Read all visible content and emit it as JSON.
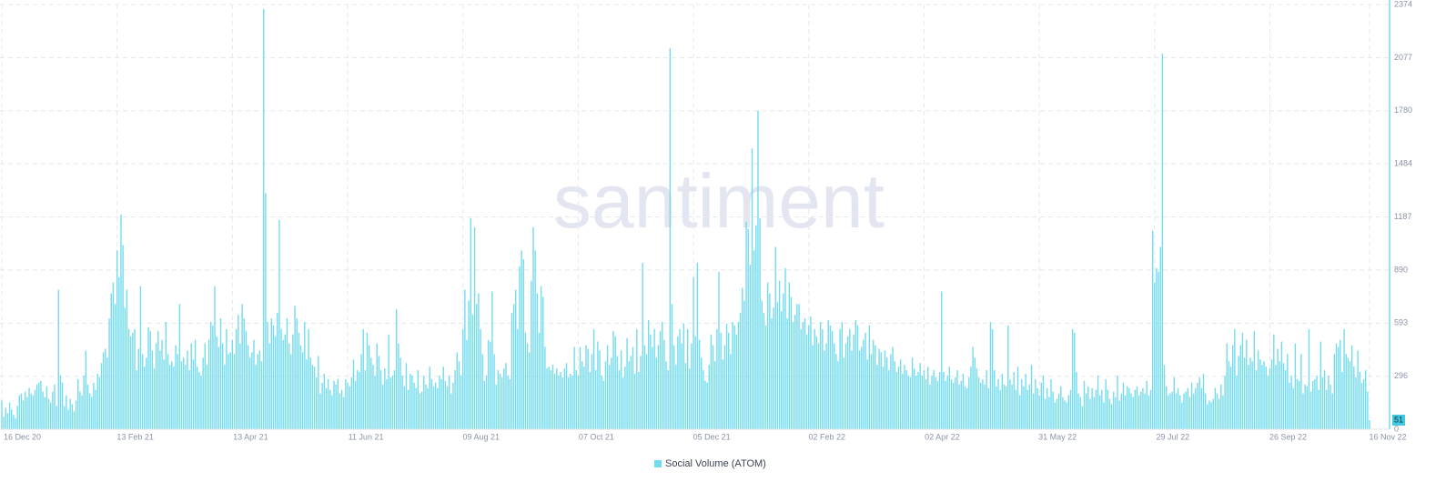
{
  "chart_data": {
    "type": "bar",
    "watermark": "santiment",
    "legend": "Social Volume (ATOM)",
    "color": "#73dbee",
    "grid": true,
    "ylim": [
      0,
      2374
    ],
    "yticks": [
      0,
      296,
      593,
      890,
      1187,
      1484,
      1780,
      2077,
      2374
    ],
    "categories": [
      "16 Dec 20",
      null,
      null,
      null,
      null,
      null,
      null,
      null,
      null,
      null,
      null,
      null,
      null,
      null,
      null,
      null,
      null,
      null,
      null,
      null,
      null,
      null,
      null,
      null,
      null,
      null,
      null,
      null,
      null,
      null,
      null,
      null,
      null,
      null,
      null,
      null,
      null,
      null,
      null,
      null,
      null,
      null,
      null,
      null,
      null,
      null,
      null,
      null,
      null,
      null,
      null,
      null,
      null,
      null,
      null,
      null,
      null,
      null,
      null,
      "13 Feb 21",
      null,
      null,
      null,
      null,
      null,
      null,
      null,
      null,
      null,
      null,
      null,
      null,
      null,
      null,
      null,
      null,
      null,
      null,
      null,
      null,
      null,
      null,
      null,
      null,
      null,
      null,
      null,
      null,
      null,
      null,
      null,
      null,
      null,
      null,
      null,
      null,
      null,
      null,
      null,
      null,
      null,
      null,
      null,
      null,
      null,
      null,
      null,
      null,
      null,
      null,
      null,
      null,
      null,
      null,
      null,
      null,
      null,
      null,
      "13 Apr 21",
      null,
      null,
      null,
      null,
      null,
      null,
      null,
      null,
      null,
      null,
      null,
      null,
      null,
      null,
      null,
      null,
      null,
      null,
      null,
      null,
      null,
      null,
      null,
      null,
      null,
      null,
      null,
      null,
      null,
      null,
      null,
      null,
      null,
      null,
      null,
      null,
      null,
      null,
      null,
      null,
      null,
      null,
      null,
      null,
      null,
      null,
      null,
      null,
      null,
      null,
      null,
      null,
      null,
      null,
      null,
      null,
      null,
      null,
      "11 Jun 21",
      null,
      null,
      null,
      null,
      null,
      null,
      null,
      null,
      null,
      null,
      null,
      null,
      null,
      null,
      null,
      null,
      null,
      null,
      null,
      null,
      null,
      null,
      null,
      null,
      null,
      null,
      null,
      null,
      null,
      null,
      null,
      null,
      null,
      null,
      null,
      null,
      null,
      null,
      null,
      null,
      null,
      null,
      null,
      null,
      null,
      null,
      null,
      null,
      null,
      null,
      null,
      null,
      null,
      null,
      null,
      null,
      null,
      null,
      "09 Aug 21",
      null,
      null,
      null,
      null,
      null,
      null,
      null,
      null,
      null,
      null,
      null,
      null,
      null,
      null,
      null,
      null,
      null,
      null,
      null,
      null,
      null,
      null,
      null,
      null,
      null,
      null,
      null,
      null,
      null,
      null,
      null,
      null,
      null,
      null,
      null,
      null,
      null,
      null,
      null,
      null,
      null,
      null,
      null,
      null,
      null,
      null,
      null,
      null,
      null,
      null,
      null,
      null,
      null,
      null,
      null,
      null,
      null,
      null,
      "07 Oct 21",
      null,
      null,
      null,
      null,
      null,
      null,
      null,
      null,
      null,
      null,
      null,
      null,
      null,
      null,
      null,
      null,
      null,
      null,
      null,
      null,
      null,
      null,
      null,
      null,
      null,
      null,
      null,
      null,
      null,
      null,
      null,
      null,
      null,
      null,
      null,
      null,
      null,
      null,
      null,
      null,
      null,
      null,
      null,
      null,
      null,
      null,
      null,
      null,
      null,
      null,
      null,
      null,
      null,
      null,
      null,
      null,
      null,
      null,
      "05 Dec 21",
      null,
      null,
      null,
      null,
      null,
      null,
      null,
      null,
      null,
      null,
      null,
      null,
      null,
      null,
      null,
      null,
      null,
      null,
      null,
      null,
      null,
      null,
      null,
      null,
      null,
      null,
      null,
      null,
      null,
      null,
      null,
      null,
      null,
      null,
      null,
      null,
      null,
      null,
      null,
      null,
      null,
      null,
      null,
      null,
      null,
      null,
      null,
      null,
      null,
      null,
      null,
      null,
      null,
      null,
      null,
      null,
      null,
      null,
      "02 Feb 22",
      null,
      null,
      null,
      null,
      null,
      null,
      null,
      null,
      null,
      null,
      null,
      null,
      null,
      null,
      null,
      null,
      null,
      null,
      null,
      null,
      null,
      null,
      null,
      null,
      null,
      null,
      null,
      null,
      null,
      null,
      null,
      null,
      null,
      null,
      null,
      null,
      null,
      null,
      null,
      null,
      null,
      null,
      null,
      null,
      null,
      null,
      null,
      null,
      null,
      null,
      null,
      null,
      null,
      null,
      null,
      null,
      null,
      null,
      "02 Apr 22",
      null,
      null,
      null,
      null,
      null,
      null,
      null,
      null,
      null,
      null,
      null,
      null,
      null,
      null,
      null,
      null,
      null,
      null,
      null,
      null,
      null,
      null,
      null,
      null,
      null,
      null,
      null,
      null,
      null,
      null,
      null,
      null,
      null,
      null,
      null,
      null,
      null,
      null,
      null,
      null,
      null,
      null,
      null,
      null,
      null,
      null,
      null,
      null,
      null,
      null,
      null,
      null,
      null,
      null,
      null,
      null,
      null,
      null,
      "31 May 22",
      null,
      null,
      null,
      null,
      null,
      null,
      null,
      null,
      null,
      null,
      null,
      null,
      null,
      null,
      null,
      null,
      null,
      null,
      null,
      null,
      null,
      null,
      null,
      null,
      null,
      null,
      null,
      null,
      null,
      null,
      null,
      null,
      null,
      null,
      null,
      null,
      null,
      null,
      null,
      null,
      null,
      null,
      null,
      null,
      null,
      null,
      null,
      null,
      null,
      null,
      null,
      null,
      null,
      null,
      null,
      null,
      null,
      null,
      "29 Jul 22",
      null,
      null,
      null,
      null,
      null,
      null,
      null,
      null,
      null,
      null,
      null,
      null,
      null,
      null,
      null,
      null,
      null,
      null,
      null,
      null,
      null,
      null,
      null,
      null,
      null,
      null,
      null,
      null,
      null,
      null,
      null,
      null,
      null,
      null,
      null,
      null,
      null,
      null,
      null,
      null,
      null,
      null,
      null,
      null,
      null,
      null,
      null,
      null,
      null,
      null,
      null,
      null,
      null,
      null,
      null,
      null,
      null,
      null,
      "26 Sep 22",
      null,
      null,
      null,
      null,
      null,
      null,
      null,
      null,
      null,
      null,
      null,
      null,
      null,
      null,
      null,
      null,
      null,
      null,
      null,
      null,
      null,
      null,
      null,
      null,
      null,
      null,
      null,
      null,
      null,
      null,
      null,
      null,
      null,
      null,
      null,
      null,
      null,
      null,
      null,
      null,
      null,
      null,
      null,
      null,
      null,
      null,
      null,
      null,
      null,
      null,
      "16 Nov 22"
    ],
    "values": [
      160,
      70,
      120,
      90,
      150,
      110,
      80,
      60,
      130,
      190,
      200,
      160,
      210,
      180,
      230,
      200,
      190,
      220,
      250,
      260,
      270,
      210,
      180,
      240,
      170,
      150,
      210,
      250,
      130,
      780,
      300,
      260,
      130,
      190,
      110,
      170,
      140,
      100,
      160,
      280,
      210,
      190,
      300,
      440,
      250,
      200,
      180,
      260,
      220,
      310,
      290,
      370,
      430,
      450,
      400,
      620,
      760,
      820,
      700,
      1000,
      850,
      1200,
      1030,
      680,
      780,
      560,
      520,
      540,
      560,
      330,
      450,
      800,
      420,
      350,
      400,
      570,
      550,
      440,
      340,
      480,
      550,
      440,
      500,
      390,
      600,
      420,
      360,
      380,
      350,
      470,
      420,
      700,
      380,
      400,
      360,
      440,
      330,
      480,
      390,
      500,
      350,
      320,
      300,
      400,
      480,
      360,
      500,
      600,
      580,
      800,
      520,
      460,
      620,
      480,
      360,
      560,
      420,
      430,
      500,
      420,
      560,
      640,
      480,
      700,
      620,
      550,
      470,
      400,
      430,
      500,
      360,
      420,
      440,
      380,
      2350,
      1320,
      600,
      480,
      620,
      580,
      520,
      650,
      1170,
      560,
      500,
      530,
      620,
      480,
      420,
      530,
      690,
      620,
      540,
      470,
      430,
      600,
      390,
      560,
      400,
      360,
      350,
      290,
      410,
      200,
      260,
      310,
      230,
      280,
      220,
      190,
      270,
      250,
      280,
      200,
      220,
      180,
      280,
      260,
      240,
      290,
      390,
      270,
      330,
      320,
      420,
      560,
      330,
      540,
      470,
      400,
      360,
      300,
      480,
      410,
      330,
      250,
      340,
      280,
      530,
      290,
      300,
      330,
      670,
      480,
      400,
      300,
      240,
      370,
      220,
      310,
      300,
      260,
      230,
      330,
      200,
      210,
      300,
      250,
      230,
      350,
      280,
      240,
      260,
      230,
      300,
      280,
      350,
      270,
      240,
      300,
      200,
      260,
      330,
      430,
      380,
      300,
      560,
      780,
      500,
      720,
      1180,
      640,
      1130,
      700,
      760,
      560,
      420,
      270,
      300,
      500,
      490,
      770,
      420,
      250,
      330,
      310,
      290,
      340,
      370,
      300,
      280,
      650,
      700,
      780,
      560,
      910,
      1000,
      950,
      540,
      480,
      430,
      830,
      1130,
      1000,
      760,
      540,
      800,
      740,
      460,
      340,
      350,
      330,
      360,
      310,
      340,
      300,
      320,
      290,
      340,
      370,
      290,
      310,
      300,
      460,
      330,
      300,
      460,
      380,
      350,
      470,
      450,
      320,
      420,
      560,
      330,
      490,
      440,
      300,
      270,
      380,
      470,
      360,
      400,
      550,
      520,
      410,
      330,
      440,
      290,
      350,
      510,
      380,
      410,
      460,
      310,
      560,
      320,
      410,
      930,
      470,
      420,
      610,
      530,
      460,
      560,
      400,
      470,
      550,
      600,
      500,
      380,
      330,
      2130,
      700,
      470,
      360,
      520,
      560,
      480,
      590,
      370,
      560,
      340,
      480,
      850,
      520,
      930,
      500,
      400,
      330,
      270,
      260,
      360,
      530,
      470,
      380,
      560,
      880,
      540,
      390,
      470,
      590,
      540,
      420,
      600,
      580,
      530,
      600,
      650,
      790,
      720,
      1160,
      1120,
      920,
      1570,
      1000,
      1140,
      1780,
      1180,
      720,
      650,
      580,
      820,
      760,
      620,
      680,
      1020,
      710,
      830,
      660,
      760,
      900,
      620,
      820,
      740,
      600,
      640,
      700,
      700,
      560,
      600,
      620,
      530,
      580,
      630,
      470,
      560,
      520,
      480,
      600,
      560,
      440,
      480,
      610,
      580,
      550,
      480,
      420,
      380,
      560,
      600,
      400,
      480,
      520,
      560,
      440,
      530,
      610,
      580,
      440,
      460,
      500,
      540,
      390,
      580,
      420,
      500,
      470,
      360,
      450,
      430,
      350,
      440,
      400,
      330,
      420,
      460,
      380,
      320,
      350,
      390,
      310,
      360,
      330,
      300,
      290,
      400,
      340,
      300,
      320,
      370,
      300,
      330,
      280,
      350,
      250,
      300,
      330,
      290,
      270,
      320,
      770,
      320,
      270,
      300,
      350,
      280,
      260,
      290,
      330,
      250,
      270,
      310,
      240,
      230,
      290,
      350,
      460,
      400,
      340,
      290,
      260,
      280,
      250,
      330,
      230,
      600,
      560,
      330,
      240,
      280,
      220,
      310,
      250,
      240,
      580,
      280,
      250,
      320,
      220,
      350,
      190,
      280,
      240,
      310,
      220,
      250,
      360,
      200,
      280,
      230,
      190,
      260,
      300,
      170,
      230,
      180,
      280,
      210,
      150,
      170,
      200,
      240,
      180,
      160,
      150,
      190,
      220,
      560,
      540,
      320,
      200,
      180,
      130,
      270,
      200,
      240,
      170,
      230,
      180,
      220,
      300,
      190,
      220,
      150,
      280,
      220,
      170,
      140,
      210,
      180,
      300,
      160,
      200,
      260,
      190,
      240,
      230,
      200,
      180,
      220,
      240,
      190,
      210,
      230,
      200,
      270,
      190,
      220,
      1110,
      820,
      900,
      880,
      1020,
      2100,
      360,
      240,
      190,
      200,
      210,
      290,
      200,
      230,
      190,
      150,
      200,
      210,
      230,
      180,
      260,
      200,
      230,
      260,
      290,
      230,
      310,
      200,
      140,
      160,
      150,
      170,
      230,
      200,
      170,
      250,
      190,
      300,
      480,
      380,
      350,
      470,
      560,
      300,
      410,
      470,
      540,
      400,
      500,
      360,
      400,
      380,
      550,
      330,
      440,
      390,
      360,
      380,
      350,
      300,
      340,
      390,
      530,
      360,
      450,
      380,
      490,
      370,
      330,
      420,
      260,
      300,
      230,
      480,
      280,
      270,
      420,
      200,
      250,
      240,
      560,
      210,
      270,
      280,
      300,
      220,
      490,
      290,
      330,
      220,
      300,
      250,
      200,
      420,
      480,
      460,
      500,
      320,
      560,
      420,
      400,
      380,
      470,
      350,
      290,
      440,
      320,
      260,
      280,
      330,
      210,
      51
    ]
  }
}
